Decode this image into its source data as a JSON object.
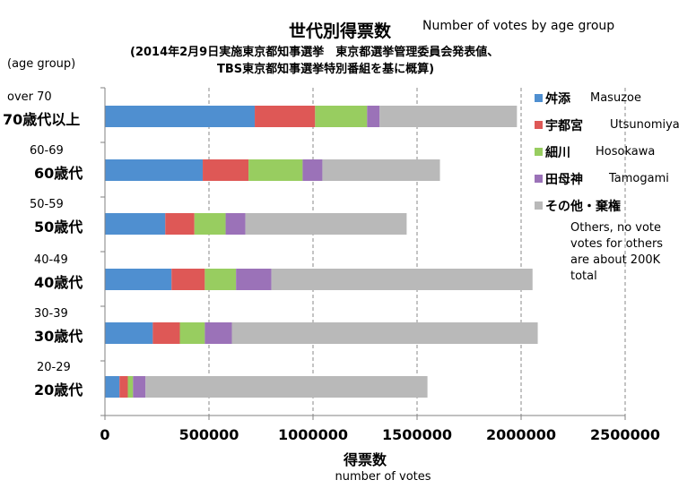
{
  "header": {
    "title_jp": "世代別得票数",
    "title_en": "Number of votes by age group",
    "subtitle_line1": "(2014年2月9日実施東京都知事選挙　東京都選挙管理委員会発表値、",
    "subtitle_line2": "TBS東京都知事選挙特別番組を基に概算)"
  },
  "axis": {
    "category_label": "(age group)",
    "x_label_jp": "得票数",
    "x_label_en": "number of votes"
  },
  "note": [
    "Others, no vote",
    "votes for others",
    "are about 200K",
    "total"
  ],
  "colors": {
    "masuzoe": "#4f8fd0",
    "utsunomiya": "#de5856",
    "hosokawa": "#98cd60",
    "tamogami": "#9b72b8",
    "others": "#b9b9b9",
    "grid": "#8a8a8a"
  },
  "chart_data": {
    "type": "bar",
    "orientation": "horizontal",
    "stacked": true,
    "title": "世代別得票数",
    "xlabel": "得票数",
    "ylabel": "(age group)",
    "xlim": [
      0,
      2500000
    ],
    "xticks": [
      "0",
      "500000",
      "1000000",
      "1500000",
      "2000000",
      "2500000"
    ],
    "categories": [
      {
        "en": "over 70",
        "jp": "70歳代以上"
      },
      {
        "en": "60-69",
        "jp": "60歳代"
      },
      {
        "en": "50-59",
        "jp": "50歳代"
      },
      {
        "en": "40-49",
        "jp": "40歳代"
      },
      {
        "en": "30-39",
        "jp": "30歳代"
      },
      {
        "en": "20-29",
        "jp": "20歳代"
      }
    ],
    "series": [
      {
        "name": "舛添",
        "name_en": "Masuzoe",
        "color": "#4f8fd0",
        "values": [
          720000,
          470000,
          290000,
          320000,
          230000,
          70000
        ]
      },
      {
        "name": "宇都宮",
        "name_en": "Utsunomiya",
        "color": "#de5856",
        "values": [
          290000,
          220000,
          140000,
          160000,
          130000,
          40000
        ]
      },
      {
        "name": "細川",
        "name_en": "Hosokawa",
        "color": "#98cd60",
        "values": [
          250000,
          260000,
          150000,
          150000,
          120000,
          25000
        ]
      },
      {
        "name": "田母神",
        "name_en": "Tamogami",
        "color": "#9b72b8",
        "values": [
          60000,
          95000,
          95000,
          170000,
          130000,
          60000
        ]
      },
      {
        "name": "その他・棄権",
        "name_en": "",
        "color": "#b9b9b9",
        "values": [
          660000,
          565000,
          775000,
          1255000,
          1470000,
          1355000
        ]
      }
    ],
    "grid": true,
    "legend": "right"
  }
}
